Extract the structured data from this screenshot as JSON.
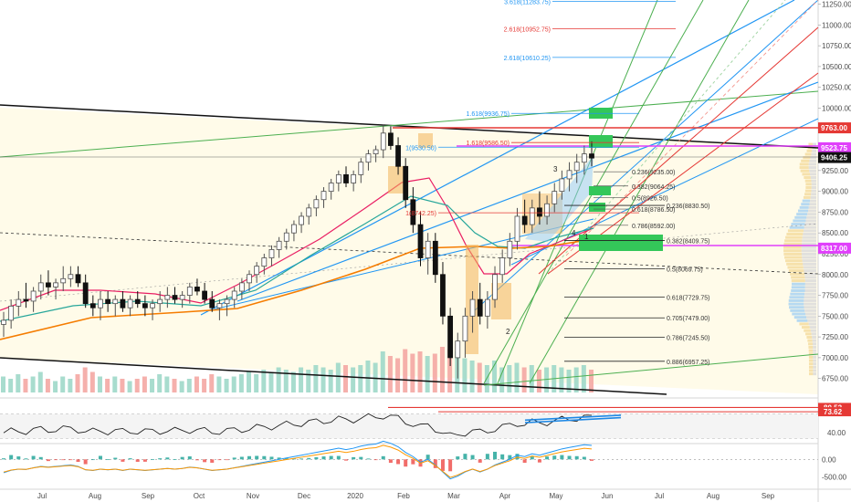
{
  "chart_data": {
    "type": "candlestick",
    "symbol_context": "price chart with volume profile, RSI and MACD panes",
    "x_axis_labels": [
      "Jul",
      "Aug",
      "Sep",
      "Oct",
      "Nov",
      "Dec",
      "2020",
      "Feb",
      "Mar",
      "Apr",
      "May",
      "Jun",
      "Jul",
      "Aug",
      "Sep"
    ],
    "price_axis": {
      "ticks": [
        11250,
        11000,
        10750,
        10500,
        10250,
        10000,
        9750,
        9500,
        9250,
        9000,
        8750,
        8500,
        8250,
        8000,
        7750,
        7500,
        7250,
        7000,
        6750
      ],
      "tick_labels": [
        "11250.00",
        "11000.00",
        "10750.00",
        "10500.00",
        "10250.00",
        "10000.00",
        "9750.00",
        "9500.00",
        "9250.00",
        "9000.00",
        "8750.00",
        "8500.00",
        "8250.00",
        "8000.00",
        "7750.00",
        "7500.00",
        "7250.00",
        "7000.00",
        "6750.00"
      ],
      "range": [
        6560,
        11300
      ]
    },
    "price_tags": [
      {
        "value": 9763,
        "label": "9763.00",
        "color": "#e53935"
      },
      {
        "value": 9523.75,
        "label": "9523.75",
        "color": "#e040fb"
      },
      {
        "value": 9406.25,
        "label": "9406.25",
        "color": "#111111"
      },
      {
        "value": 8317,
        "label": "8317.00",
        "color": "#e040fb"
      }
    ],
    "fib_levels_lower": [
      {
        "label": "0.236(9235.00)",
        "value": 9235
      },
      {
        "label": "0.382(9064.25)",
        "value": 9064.25
      },
      {
        "label": "0.5(8926.50)",
        "value": 8926.5
      },
      {
        "label": "0.618(8786.50)",
        "value": 8786.5
      },
      {
        "label": "0.786(8592.00)",
        "value": 8592
      }
    ],
    "fib_levels_right": [
      {
        "label": "0.236(8830.50)",
        "value": 8830.5
      },
      {
        "label": "0.382(8409.75)",
        "value": 8409.75
      },
      {
        "label": "0.5(8069.75)",
        "value": 8069.75
      },
      {
        "label": "0.618(7729.75)",
        "value": 7729.75
      },
      {
        "label": "0.705(7479.00)",
        "value": 7479
      },
      {
        "label": "0.786(7245.50)",
        "value": 7245.5
      },
      {
        "label": "0.886(6957.25)",
        "value": 6957.25
      }
    ],
    "fib_extensions": [
      {
        "label": "3.618(11283.75)",
        "value": 11283.75,
        "color": "#2196f3"
      },
      {
        "label": "2.618(10952.75)",
        "value": 10952.75,
        "color": "#e53935"
      },
      {
        "label": "2.618(10610.25)",
        "value": 10610.25,
        "color": "#2196f3"
      },
      {
        "label": "1.618(9936.75)",
        "value": 9936.75,
        "color": "#2196f3"
      },
      {
        "label": "1.618(9586.50)",
        "value": 9586.5,
        "color": "#e53935"
      },
      {
        "label": "1(9530.50)",
        "value": 9530.5,
        "color": "#2196f3"
      },
      {
        "label": "1(8742.25)",
        "value": 8742.25,
        "color": "#e53935"
      }
    ],
    "wave_labels": [
      "1",
      "2",
      "3",
      "4"
    ],
    "rsi": {
      "ticks": [
        40
      ],
      "tick_labels": [
        "40.00"
      ],
      "tags": [
        {
          "value": 80.52,
          "label": "80.52",
          "color": "#e53935"
        },
        {
          "value": 73.62,
          "label": "73.62",
          "color": "#e53935"
        }
      ],
      "range": [
        25,
        90
      ]
    },
    "macd": {
      "ticks": [
        0,
        -500
      ],
      "tick_labels": [
        "0.00",
        "-500.00"
      ],
      "range": [
        -750,
        400
      ]
    },
    "candles": [
      [
        7400,
        7550,
        7250,
        7450
      ],
      [
        7450,
        7700,
        7350,
        7620
      ],
      [
        7620,
        7800,
        7500,
        7700
      ],
      [
        7700,
        7900,
        7600,
        7680
      ],
      [
        7680,
        7850,
        7550,
        7800
      ],
      [
        7800,
        8000,
        7700,
        7900
      ],
      [
        7900,
        8050,
        7750,
        7850
      ],
      [
        7850,
        7950,
        7700,
        7900
      ],
      [
        7900,
        8100,
        7800,
        7950
      ],
      [
        7950,
        8100,
        7850,
        8000
      ],
      [
        8000,
        8100,
        7850,
        7900
      ],
      [
        7900,
        8000,
        7600,
        7650
      ],
      [
        7650,
        7750,
        7500,
        7600
      ],
      [
        7600,
        7800,
        7450,
        7700
      ],
      [
        7700,
        7800,
        7550,
        7650
      ],
      [
        7650,
        7750,
        7500,
        7700
      ],
      [
        7700,
        7800,
        7550,
        7600
      ],
      [
        7600,
        7750,
        7500,
        7700
      ],
      [
        7700,
        7800,
        7600,
        7650
      ],
      [
        7650,
        7750,
        7500,
        7600
      ],
      [
        7600,
        7700,
        7450,
        7650
      ],
      [
        7650,
        7800,
        7550,
        7700
      ],
      [
        7700,
        7850,
        7600,
        7750
      ],
      [
        7750,
        7850,
        7650,
        7700
      ],
      [
        7700,
        7800,
        7600,
        7750
      ],
      [
        7750,
        7900,
        7650,
        7850
      ],
      [
        7850,
        7950,
        7750,
        7800
      ],
      [
        7800,
        7900,
        7650,
        7700
      ],
      [
        7700,
        7800,
        7550,
        7600
      ],
      [
        7600,
        7700,
        7450,
        7650
      ],
      [
        7650,
        7750,
        7500,
        7700
      ],
      [
        7700,
        7850,
        7600,
        7800
      ],
      [
        7800,
        7950,
        7700,
        7900
      ],
      [
        7900,
        8050,
        7800,
        8000
      ],
      [
        8000,
        8150,
        7900,
        8100
      ],
      [
        8100,
        8250,
        8000,
        8200
      ],
      [
        8200,
        8350,
        8100,
        8300
      ],
      [
        8300,
        8450,
        8200,
        8400
      ],
      [
        8400,
        8550,
        8300,
        8500
      ],
      [
        8500,
        8650,
        8400,
        8600
      ],
      [
        8600,
        8750,
        8500,
        8700
      ],
      [
        8700,
        8850,
        8600,
        8800
      ],
      [
        8800,
        8950,
        8700,
        8900
      ],
      [
        8900,
        9050,
        8800,
        9000
      ],
      [
        9000,
        9150,
        8900,
        9100
      ],
      [
        9100,
        9250,
        9000,
        9200
      ],
      [
        9200,
        9300,
        9050,
        9100
      ],
      [
        9100,
        9250,
        9000,
        9200
      ],
      [
        9200,
        9400,
        9100,
        9350
      ],
      [
        9350,
        9500,
        9250,
        9450
      ],
      [
        9450,
        9550,
        9350,
        9500
      ],
      [
        9500,
        9800,
        9400,
        9700
      ],
      [
        9700,
        9780,
        9500,
        9550
      ],
      [
        9550,
        9650,
        9200,
        9300
      ],
      [
        9300,
        9400,
        8800,
        8900
      ],
      [
        8900,
        9050,
        8500,
        8600
      ],
      [
        8600,
        8750,
        8100,
        8200
      ],
      [
        8200,
        8500,
        8000,
        8400
      ],
      [
        8400,
        8500,
        7900,
        8000
      ],
      [
        8000,
        8150,
        7400,
        7500
      ],
      [
        7500,
        7600,
        6900,
        7000
      ],
      [
        7000,
        7300,
        6750,
        7200
      ],
      [
        7200,
        7600,
        7000,
        7500
      ],
      [
        7500,
        7800,
        7300,
        7700
      ],
      [
        7700,
        7900,
        7400,
        7500
      ],
      [
        7500,
        7800,
        7350,
        7700
      ],
      [
        7700,
        8100,
        7600,
        8000
      ],
      [
        8000,
        8300,
        7900,
        8200
      ],
      [
        8200,
        8500,
        8100,
        8400
      ],
      [
        8400,
        8800,
        8300,
        8700
      ],
      [
        8700,
        8900,
        8500,
        8600
      ],
      [
        8600,
        8900,
        8500,
        8800
      ],
      [
        8800,
        9000,
        8600,
        8700
      ],
      [
        8700,
        8950,
        8600,
        8850
      ],
      [
        8850,
        9100,
        8750,
        9000
      ],
      [
        9000,
        9250,
        8900,
        9150
      ],
      [
        9150,
        9350,
        9000,
        9250
      ],
      [
        9250,
        9450,
        9100,
        9350
      ],
      [
        9350,
        9550,
        9200,
        9450
      ],
      [
        9450,
        9600,
        9300,
        9400
      ]
    ],
    "volume": [
      0.35,
      0.3,
      0.4,
      0.3,
      0.35,
      0.45,
      0.3,
      0.25,
      0.35,
      0.3,
      0.4,
      0.55,
      0.45,
      0.35,
      0.3,
      0.35,
      0.3,
      0.25,
      0.3,
      0.35,
      0.3,
      0.4,
      0.35,
      0.3,
      0.25,
      0.3,
      0.35,
      0.3,
      0.4,
      0.35,
      0.3,
      0.35,
      0.4,
      0.45,
      0.4,
      0.5,
      0.45,
      0.55,
      0.5,
      0.45,
      0.55,
      0.5,
      0.6,
      0.55,
      0.5,
      0.65,
      0.6,
      0.55,
      0.6,
      0.7,
      0.65,
      0.9,
      0.8,
      0.75,
      0.95,
      0.85,
      0.9,
      0.8,
      0.85,
      1.0,
      0.95,
      0.9,
      0.75,
      0.7,
      0.65,
      0.6,
      0.7,
      0.55,
      0.6,
      0.65,
      0.55,
      0.6,
      0.5,
      0.55,
      0.6,
      0.55,
      0.5,
      0.55,
      0.6,
      0.5
    ]
  }
}
